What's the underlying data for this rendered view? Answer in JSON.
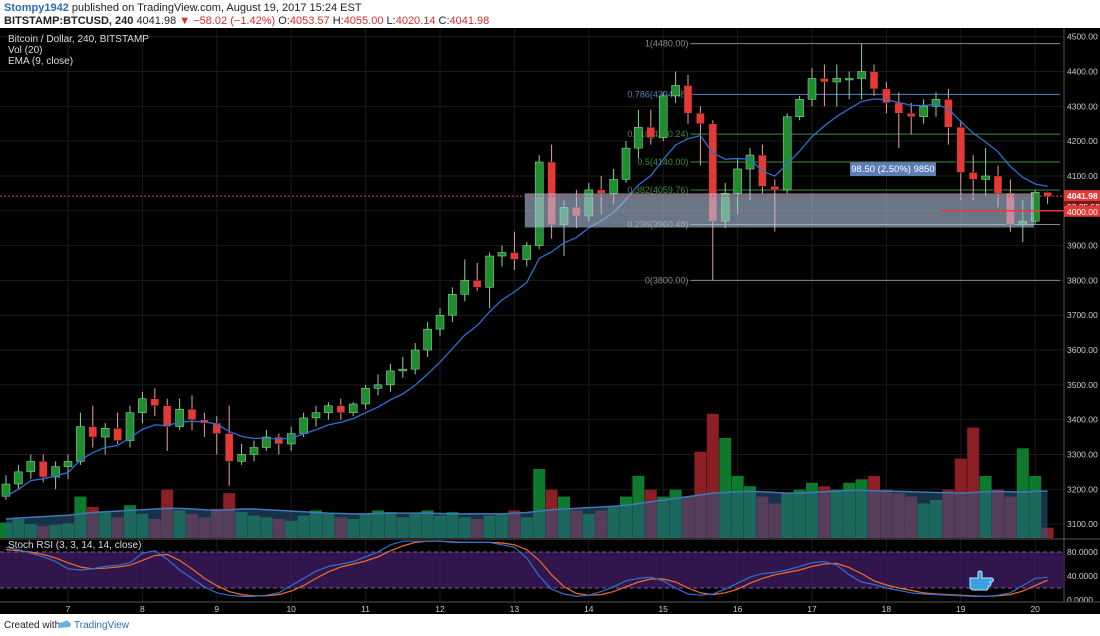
{
  "header": {
    "author": "Stompy1942",
    "published_text": " published on TradingView.com, August 19, 2017 15:24 EST",
    "symbol": "BITSTAMP:BTCUSD, 240",
    "last_price": "4041.98",
    "change_text": "−58.02 (−1.42%)",
    "ohlc": {
      "o_label": "O:",
      "o": "4053.57",
      "h_label": "H:",
      "h": "4055.00",
      "l_label": "L:",
      "l": "4020.14",
      "c_label": "C:",
      "c": "4041.98"
    }
  },
  "legend": {
    "title": "Bitcoin / Dollar, 240, BITSTAMP",
    "vol": "Vol (20)",
    "ema": "EMA (9, close)",
    "rsi": "Stoch RSI (3, 3, 14, 14, close)"
  },
  "footer": {
    "created": "Created with",
    "brand": "TradingView"
  },
  "colors": {
    "background": "#000000",
    "up": "#1e8e2e",
    "down": "#e53935",
    "vol_up": "#0e7a2e",
    "vol_down": "#8c1e26",
    "vol_ma_fill": "#2a5a85",
    "ema": "#2f6fd0",
    "rsi_k": "#2f6fd0",
    "rsi_d": "#ef6c2a",
    "rsi_band": "#3a1a5a",
    "grid": "#1b1b1b",
    "fib": "#8a8a8a",
    "fib_786": "#5a7fc8",
    "fib_618": "#3e8e3e",
    "range_box": "#b0c4e0",
    "price_line": "#e53935"
  },
  "chart_data": {
    "type": "candlestick",
    "price_axis": {
      "ticks": [
        "3100.00",
        "3200.00",
        "3300.00",
        "3400.00",
        "3500.00",
        "3600.00",
        "3700.00",
        "3800.00",
        "3900.00",
        "4000.00",
        "4100.00",
        "4200.00",
        "4300.00",
        "4400.00",
        "4500.00"
      ],
      "range": [
        3060,
        4525
      ]
    },
    "x_ticks": [
      {
        "label": "7",
        "i": 5
      },
      {
        "label": "8",
        "i": 11
      },
      {
        "label": "9",
        "i": 17
      },
      {
        "label": "10",
        "i": 23
      },
      {
        "label": "11",
        "i": 29
      },
      {
        "label": "12",
        "i": 35
      },
      {
        "label": "13",
        "i": 41
      },
      {
        "label": "14",
        "i": 47
      },
      {
        "label": "15",
        "i": 53
      },
      {
        "label": "16",
        "i": 59
      },
      {
        "label": "17",
        "i": 65
      },
      {
        "label": "18",
        "i": 71
      },
      {
        "label": "19",
        "i": 77
      },
      {
        "label": "20",
        "i": 83
      }
    ],
    "candles": [
      [
        3180,
        3240,
        3170,
        3215
      ],
      [
        3215,
        3270,
        3200,
        3250
      ],
      [
        3250,
        3300,
        3230,
        3280
      ],
      [
        3280,
        3300,
        3220,
        3235
      ],
      [
        3235,
        3280,
        3200,
        3265
      ],
      [
        3265,
        3300,
        3230,
        3280
      ],
      [
        3280,
        3420,
        3270,
        3380
      ],
      [
        3380,
        3440,
        3320,
        3350
      ],
      [
        3350,
        3390,
        3300,
        3375
      ],
      [
        3375,
        3420,
        3330,
        3340
      ],
      [
        3340,
        3440,
        3320,
        3420
      ],
      [
        3420,
        3480,
        3390,
        3460
      ],
      [
        3460,
        3490,
        3410,
        3440
      ],
      [
        3440,
        3460,
        3310,
        3380
      ],
      [
        3380,
        3460,
        3370,
        3430
      ],
      [
        3430,
        3470,
        3370,
        3400
      ],
      [
        3400,
        3420,
        3350,
        3390
      ],
      [
        3390,
        3410,
        3300,
        3360
      ],
      [
        3360,
        3440,
        3210,
        3280
      ],
      [
        3280,
        3330,
        3270,
        3300
      ],
      [
        3300,
        3340,
        3280,
        3320
      ],
      [
        3320,
        3370,
        3310,
        3350
      ],
      [
        3350,
        3360,
        3300,
        3330
      ],
      [
        3330,
        3380,
        3310,
        3360
      ],
      [
        3360,
        3420,
        3350,
        3405
      ],
      [
        3405,
        3440,
        3380,
        3420
      ],
      [
        3420,
        3450,
        3400,
        3440
      ],
      [
        3440,
        3460,
        3400,
        3420
      ],
      [
        3420,
        3450,
        3410,
        3445
      ],
      [
        3445,
        3500,
        3430,
        3490
      ],
      [
        3490,
        3530,
        3470,
        3500
      ],
      [
        3500,
        3560,
        3480,
        3540
      ],
      [
        3540,
        3580,
        3520,
        3545
      ],
      [
        3545,
        3620,
        3530,
        3600
      ],
      [
        3600,
        3680,
        3580,
        3660
      ],
      [
        3660,
        3720,
        3640,
        3700
      ],
      [
        3700,
        3780,
        3680,
        3760
      ],
      [
        3760,
        3860,
        3740,
        3800
      ],
      [
        3800,
        3850,
        3770,
        3780
      ],
      [
        3780,
        3880,
        3720,
        3870
      ],
      [
        3870,
        3900,
        3840,
        3880
      ],
      [
        3880,
        3940,
        3830,
        3860
      ],
      [
        3860,
        3910,
        3840,
        3900
      ],
      [
        3900,
        4160,
        3890,
        4140
      ],
      [
        4140,
        4190,
        3920,
        3960
      ],
      [
        3960,
        4030,
        3870,
        4010
      ],
      [
        4010,
        4060,
        3950,
        3985
      ],
      [
        3985,
        4080,
        3970,
        4060
      ],
      [
        4060,
        4100,
        3990,
        4050
      ],
      [
        4050,
        4120,
        4020,
        4090
      ],
      [
        4090,
        4200,
        4080,
        4180
      ],
      [
        4180,
        4290,
        4150,
        4240
      ],
      [
        4240,
        4290,
        4190,
        4210
      ],
      [
        4210,
        4340,
        4200,
        4330
      ],
      [
        4330,
        4400,
        4310,
        4360
      ],
      [
        4360,
        4390,
        4250,
        4280
      ],
      [
        4280,
        4300,
        4130,
        4250
      ],
      [
        4250,
        4260,
        3800,
        3970
      ],
      [
        3970,
        4080,
        3950,
        4050
      ],
      [
        4050,
        4150,
        3990,
        4120
      ],
      [
        4120,
        4180,
        4030,
        4160
      ],
      [
        4160,
        4190,
        4050,
        4070
      ],
      [
        4070,
        4090,
        3940,
        4060
      ],
      [
        4060,
        4280,
        4050,
        4270
      ],
      [
        4270,
        4330,
        4260,
        4320
      ],
      [
        4320,
        4410,
        4300,
        4380
      ],
      [
        4380,
        4420,
        4300,
        4370
      ],
      [
        4370,
        4420,
        4300,
        4380
      ],
      [
        4380,
        4400,
        4320,
        4380
      ],
      [
        4380,
        4480,
        4320,
        4400
      ],
      [
        4400,
        4420,
        4330,
        4350
      ],
      [
        4350,
        4370,
        4280,
        4310
      ],
      [
        4310,
        4340,
        4180,
        4280
      ],
      [
        4280,
        4310,
        4220,
        4270
      ],
      [
        4270,
        4320,
        4250,
        4300
      ],
      [
        4300,
        4340,
        4270,
        4320
      ],
      [
        4320,
        4350,
        4190,
        4240
      ],
      [
        4240,
        4260,
        4030,
        4110
      ],
      [
        4110,
        4160,
        4030,
        4090
      ],
      [
        4090,
        4180,
        4040,
        4100
      ],
      [
        4100,
        4130,
        4010,
        4050
      ],
      [
        4050,
        4090,
        3940,
        3960
      ],
      [
        3960,
        4030,
        3910,
        3970
      ],
      [
        3970,
        4060,
        3960,
        4053
      ],
      [
        4053,
        4055,
        4020,
        4042
      ]
    ],
    "ema": [
      3180,
      3200,
      3225,
      3230,
      3238,
      3248,
      3284,
      3305,
      3320,
      3326,
      3348,
      3372,
      3385,
      3383,
      3393,
      3395,
      3394,
      3387,
      3366,
      3352,
      3346,
      3347,
      3344,
      3347,
      3359,
      3371,
      3385,
      3392,
      3403,
      3420,
      3436,
      3457,
      3474,
      3499,
      3531,
      3565,
      3604,
      3643,
      3670,
      3710,
      3744,
      3767,
      3794,
      3863,
      3882,
      3908,
      3923,
      3951,
      3971,
      3995,
      4032,
      4074,
      4101,
      4147,
      4189,
      4207,
      4216,
      4166,
      4148,
      4150,
      4148,
      4114,
      4100,
      4134,
      4171,
      4213,
      4244,
      4271,
      4293,
      4314,
      4321,
      4319,
      4311,
      4303,
      4302,
      4306,
      4293,
      4256,
      4223,
      4198,
      4169,
      4127,
      4096,
      4077,
      4070
    ],
    "volume": [
      45,
      55,
      40,
      35,
      38,
      42,
      120,
      90,
      75,
      60,
      95,
      70,
      55,
      140,
      80,
      70,
      60,
      85,
      130,
      75,
      65,
      60,
      55,
      50,
      65,
      80,
      70,
      60,
      55,
      70,
      80,
      75,
      60,
      70,
      80,
      65,
      75,
      60,
      55,
      65,
      70,
      80,
      60,
      200,
      140,
      120,
      80,
      70,
      80,
      90,
      120,
      180,
      140,
      120,
      140,
      120,
      250,
      360,
      290,
      180,
      150,
      120,
      100,
      130,
      140,
      160,
      150,
      140,
      160,
      170,
      180,
      140,
      130,
      120,
      100,
      110,
      140,
      230,
      320,
      180,
      140,
      120,
      260,
      180,
      30
    ],
    "volume_ma": [
      55,
      58,
      60,
      62,
      64,
      66,
      70,
      74,
      76,
      78,
      80,
      82,
      84,
      86,
      86,
      84,
      82,
      80,
      82,
      84,
      84,
      82,
      80,
      78,
      76,
      74,
      72,
      71,
      70,
      70,
      71,
      72,
      72,
      72,
      72,
      71,
      70,
      70,
      70,
      70,
      70,
      72,
      74,
      78,
      82,
      84,
      86,
      88,
      90,
      92,
      95,
      100,
      105,
      110,
      115,
      120,
      125,
      130,
      132,
      134,
      135,
      134,
      132,
      130,
      130,
      132,
      134,
      136,
      138,
      138,
      137,
      136,
      135,
      134,
      133,
      132,
      131,
      130,
      132,
      134,
      135,
      134,
      133,
      135,
      136
    ],
    "stoch_k": [
      88,
      84,
      78,
      72,
      64,
      52,
      50,
      52,
      56,
      58,
      62,
      78,
      82,
      68,
      50,
      36,
      22,
      12,
      8,
      6,
      6,
      8,
      12,
      24,
      36,
      48,
      56,
      60,
      64,
      72,
      80,
      92,
      98,
      98,
      98,
      98,
      96,
      96,
      96,
      96,
      92,
      88,
      70,
      40,
      18,
      10,
      6,
      8,
      14,
      22,
      32,
      36,
      38,
      32,
      20,
      10,
      8,
      10,
      18,
      28,
      38,
      44,
      46,
      50,
      56,
      62,
      64,
      58,
      42,
      30,
      26,
      20,
      16,
      12,
      10,
      9,
      8,
      7,
      6,
      6,
      8,
      12,
      24,
      36,
      38
    ],
    "stoch_d": [
      84,
      82,
      80,
      76,
      70,
      62,
      55,
      52,
      53,
      55,
      58,
      66,
      74,
      76,
      66,
      52,
      36,
      24,
      14,
      9,
      7,
      7,
      9,
      15,
      24,
      36,
      47,
      55,
      60,
      65,
      72,
      82,
      90,
      96,
      98,
      98,
      97,
      96,
      96,
      96,
      95,
      92,
      84,
      66,
      42,
      22,
      11,
      8,
      9,
      14,
      22,
      30,
      35,
      35,
      30,
      20,
      12,
      9,
      12,
      18,
      28,
      36,
      42,
      46,
      50,
      56,
      60,
      61,
      54,
      44,
      32,
      25,
      20,
      16,
      12,
      10,
      9,
      8,
      7,
      6,
      7,
      9,
      15,
      24,
      33
    ],
    "stoch_axis": {
      "ticks": [
        "0.0000",
        "40.0000",
        "80.0000"
      ],
      "range": [
        0,
        100
      ],
      "upper": 80,
      "lower": 20
    },
    "fibonacci": [
      {
        "ratio": "1",
        "label": "1(4480.00)",
        "price": 4480
      },
      {
        "ratio": "0.786",
        "label": "0.786(4334.48)",
        "price": 4334.48
      },
      {
        "ratio": "0.618",
        "label": "0.618(4220.24)",
        "price": 4220.24
      },
      {
        "ratio": "0.5",
        "label": "0.5(4140.00)",
        "price": 4140
      },
      {
        "ratio": "0.382",
        "label": "0.382(4059.76)",
        "price": 4059.76
      },
      {
        "ratio": "0.236",
        "label": "0.236(3960.48)",
        "price": 3960.48
      },
      {
        "ratio": "0",
        "label": "0(3800.00)",
        "price": 3800
      }
    ],
    "range_box": {
      "top": 4050,
      "bottom": 3952,
      "measure_label": "98.50 (2.50%) 9850"
    },
    "last_price": {
      "price": 4041.98,
      "label": "4041.98",
      "countdown": "03:35:59"
    },
    "level_line": {
      "price": 4000,
      "label": "4000.00"
    }
  }
}
